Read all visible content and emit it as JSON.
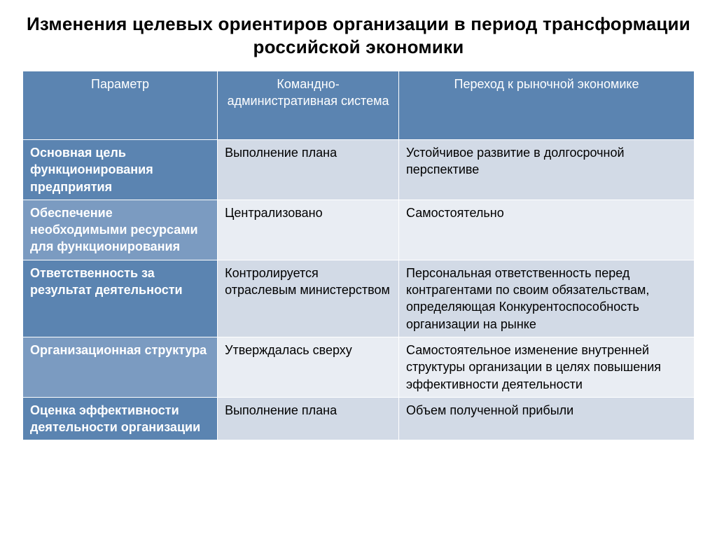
{
  "title": "Изменения целевых ориентиров организации в период трансформации российской экономики",
  "table": {
    "type": "table",
    "columns": [
      {
        "label": "Параметр",
        "width_pct": 29,
        "align": "center"
      },
      {
        "label": "Командно-административная система",
        "width_pct": 27,
        "align": "center"
      },
      {
        "label": "Переход к рыночной экономике",
        "width_pct": 44,
        "align": "center"
      }
    ],
    "header_bg": "#5b84b1",
    "header_fg": "#ffffff",
    "param_col_fg": "#ffffff",
    "value_fg": "#000000",
    "border_color": "#ffffff",
    "band_colors": {
      "a": {
        "param_bg": "#5b84b1",
        "value_bg": "#d2dae6"
      },
      "b": {
        "param_bg": "#7b9bc1",
        "value_bg": "#e9edf3"
      }
    },
    "fontsize_header": 18,
    "fontsize_body": 18,
    "rows": [
      {
        "band": "a",
        "param": "Основная цель функционирования предприятия",
        "col1": "Выполнение плана",
        "col2": "Устойчивое развитие в долгосрочной перспективе"
      },
      {
        "band": "b",
        "param": "Обеспечение необходимыми ресурсами для функционирования",
        "col1": "Централизовано",
        "col2": "Самостоятельно"
      },
      {
        "band": "a",
        "param": "Ответственность за результат деятельности",
        "col1": "Контролируется отраслевым министерством",
        "col2": "Персональная ответственность перед контрагентами по своим обязательствам, определяющая Конкурентоспособность организации на рынке"
      },
      {
        "band": "b",
        "param": "Организационная структура",
        "col1": "Утверждалась сверху",
        "col2": "Самостоятельное изменение внутренней структуры организации в целях повышения эффективности деятельности"
      },
      {
        "band": "a",
        "param": "Оценка эффективности деятельности организации",
        "col1": "Выполнение плана",
        "col2": "Объем полученной прибыли"
      }
    ]
  }
}
